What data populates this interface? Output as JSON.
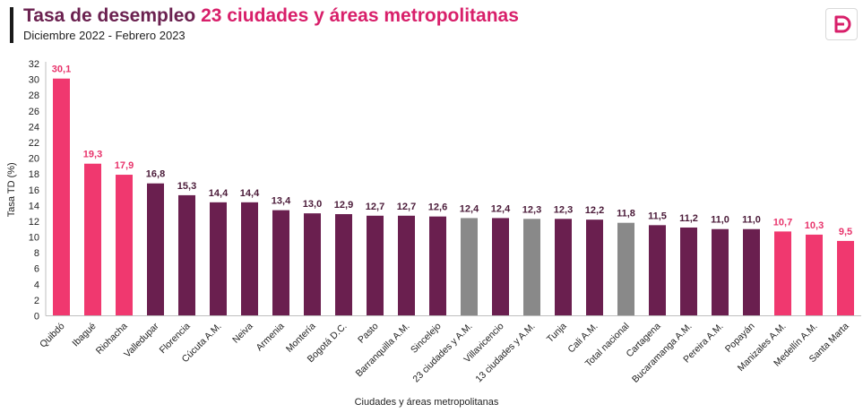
{
  "header": {
    "title_part1": "Tasa de",
    "title_part2": "desempleo",
    "title_part3": "23 ciudades y áreas metropolitanas",
    "subtitle": "Diciembre 2022 - Febrero 2023"
  },
  "logo": {
    "icon": "d-logo-icon",
    "color": "#d81f6a"
  },
  "colors": {
    "pink": "#f0386f",
    "purple": "#6a1f4f",
    "gray": "#898989",
    "label_pink": "#e8336b",
    "label_dark": "#4a1a38"
  },
  "chart_data": {
    "type": "bar",
    "xlabel": "Ciudades y áreas metropolitanas",
    "ylabel": "Tasa TD (%)",
    "ylim": [
      0,
      32
    ],
    "yticks": [
      "0",
      "2",
      "4",
      "6",
      "8",
      "10",
      "12",
      "14",
      "16",
      "18",
      "20",
      "22",
      "24",
      "26",
      "28",
      "30",
      "32"
    ],
    "grid": false,
    "categories": [
      "Quibdó",
      "Ibagué",
      "Riohacha",
      "Valledupar",
      "Florencia",
      "Cúcuta A.M.",
      "Neiva",
      "Armenia",
      "Montería",
      "Bogotá D.C.",
      "Pasto",
      "Barranquilla A.M.",
      "Sincelejo",
      "23 ciudades y A.M.",
      "Villavicencio",
      "13 ciudades y A.M.",
      "Tunja",
      "Cali A.M.",
      "Total nacional",
      "Cartagena",
      "Bucaramanga A.M.",
      "Pereira A.M.",
      "Popayán",
      "Manizales A.M.",
      "Medellín A.M.",
      "Santa Marta"
    ],
    "values": [
      30.1,
      19.3,
      17.9,
      16.8,
      15.3,
      14.4,
      14.4,
      13.4,
      13.0,
      12.9,
      12.7,
      12.7,
      12.6,
      12.4,
      12.4,
      12.3,
      12.3,
      12.2,
      11.8,
      11.5,
      11.2,
      11.0,
      11.0,
      10.7,
      10.3,
      9.5
    ],
    "value_labels": [
      "30,1",
      "19,3",
      "17,9",
      "16,8",
      "15,3",
      "14,4",
      "14,4",
      "13,4",
      "13,0",
      "12,9",
      "12,7",
      "12,7",
      "12,6",
      "12,4",
      "12,4",
      "12,3",
      "12,3",
      "12,2",
      "11,8",
      "11,5",
      "11,2",
      "11,0",
      "11,0",
      "10,7",
      "10,3",
      "9,5"
    ],
    "bar_colors": [
      "pink",
      "pink",
      "pink",
      "purple",
      "purple",
      "purple",
      "purple",
      "purple",
      "purple",
      "purple",
      "purple",
      "purple",
      "purple",
      "gray",
      "purple",
      "gray",
      "purple",
      "purple",
      "gray",
      "purple",
      "purple",
      "purple",
      "purple",
      "pink",
      "pink",
      "pink"
    ]
  }
}
